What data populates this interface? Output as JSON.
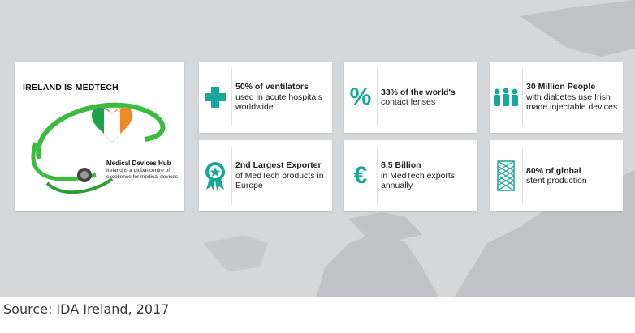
{
  "hero": {
    "title_part1": "IRELAND IS ",
    "title_part2": "MEDTECH",
    "subtitle": "Medical Devices Hub",
    "description": "Ireland is a global centre of excellence for medical devices"
  },
  "stats": [
    {
      "icon": "plus-icon",
      "bold": "50% of ventilators",
      "rest": "used in acute hospitals worldwide"
    },
    {
      "icon": "percent-icon",
      "bold": "33% of the world's",
      "rest": "contact lenses"
    },
    {
      "icon": "people-icon",
      "bold": "30 Million People",
      "rest": "with diabetes use Irish made injectable devices"
    },
    {
      "icon": "award-ribbon-icon",
      "bold": "2nd Largest Exporter",
      "rest": "of MedTech products in Europe"
    },
    {
      "icon": "euro-icon",
      "bold": "8.5 Billion",
      "rest": "in MedTech exports annually"
    },
    {
      "icon": "stent-icon",
      "bold": "80% of global",
      "rest": "stent production"
    }
  ],
  "source": "Source: IDA Ireland, 2017",
  "colors": {
    "accent": "#17a79b",
    "green": "#3dbb3f",
    "orange": "#f08a24",
    "irish_green": "#1aa34a"
  }
}
